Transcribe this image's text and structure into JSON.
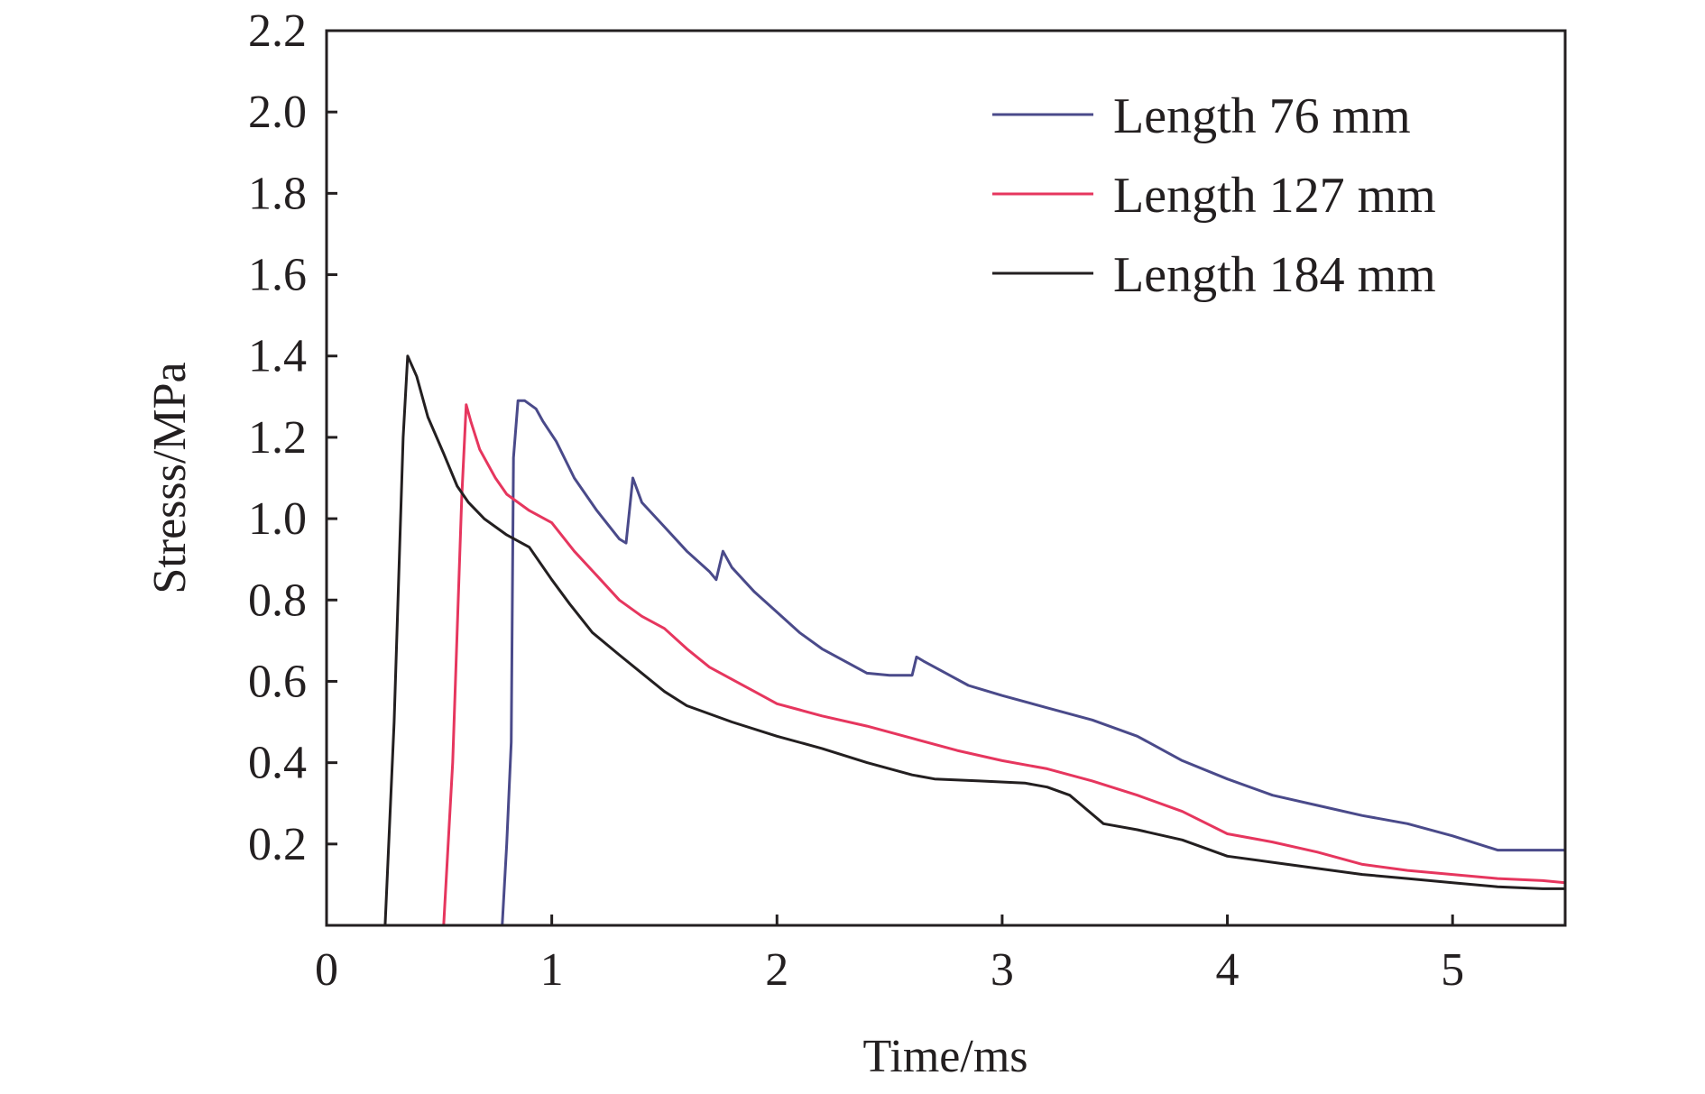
{
  "chart_data": {
    "type": "line",
    "xlabel": "Time/ms",
    "ylabel": "Stresss/MPa",
    "xlim": [
      0,
      5.5
    ],
    "ylim": [
      0,
      2.2
    ],
    "x_ticks": [
      0,
      1,
      2,
      3,
      4,
      5
    ],
    "x_tick_labels": [
      "0",
      "1",
      "2",
      "3",
      "4",
      "5"
    ],
    "y_ticks": [
      0.2,
      0.4,
      0.6,
      0.8,
      1.0,
      1.2,
      1.4,
      1.6,
      1.8,
      2.0,
      2.2
    ],
    "y_tick_labels": [
      "0.2",
      "0.4",
      "0.6",
      "0.8",
      "1.0",
      "1.2",
      "1.4",
      "1.6",
      "1.8",
      "2.0",
      "2.2"
    ],
    "grid": false,
    "legend_position": "top-right",
    "series": [
      {
        "name": "Length 76 mm",
        "color": "#4a4a8a",
        "x": [
          0.78,
          0.8,
          0.82,
          0.83,
          0.85,
          0.88,
          0.93,
          0.96,
          1.02,
          1.1,
          1.2,
          1.3,
          1.33,
          1.36,
          1.4,
          1.5,
          1.6,
          1.7,
          1.73,
          1.76,
          1.8,
          1.9,
          2.0,
          2.1,
          2.2,
          2.3,
          2.4,
          2.5,
          2.6,
          2.62,
          2.65,
          2.75,
          2.85,
          3.0,
          3.2,
          3.4,
          3.6,
          3.8,
          4.0,
          4.2,
          4.4,
          4.6,
          4.8,
          5.0,
          5.2,
          5.4,
          5.5
        ],
        "y": [
          0.0,
          0.2,
          0.45,
          1.15,
          1.29,
          1.29,
          1.27,
          1.24,
          1.19,
          1.1,
          1.02,
          0.95,
          0.94,
          1.1,
          1.04,
          0.98,
          0.92,
          0.87,
          0.85,
          0.92,
          0.88,
          0.82,
          0.77,
          0.72,
          0.68,
          0.65,
          0.62,
          0.615,
          0.615,
          0.66,
          0.65,
          0.62,
          0.59,
          0.565,
          0.535,
          0.505,
          0.465,
          0.405,
          0.36,
          0.32,
          0.295,
          0.27,
          0.25,
          0.22,
          0.185,
          0.185,
          0.185
        ]
      },
      {
        "name": "Length 127 mm",
        "color": "#e6365e",
        "x": [
          0.52,
          0.56,
          0.6,
          0.62,
          0.64,
          0.68,
          0.75,
          0.8,
          0.9,
          1.0,
          1.1,
          1.2,
          1.3,
          1.4,
          1.5,
          1.6,
          1.7,
          1.8,
          1.9,
          2.0,
          2.1,
          2.2,
          2.4,
          2.6,
          2.8,
          3.0,
          3.2,
          3.4,
          3.6,
          3.8,
          4.0,
          4.2,
          4.4,
          4.6,
          4.8,
          5.0,
          5.2,
          5.4,
          5.5
        ],
        "y": [
          0.0,
          0.4,
          1.05,
          1.28,
          1.24,
          1.17,
          1.1,
          1.06,
          1.02,
          0.99,
          0.92,
          0.86,
          0.8,
          0.76,
          0.73,
          0.68,
          0.635,
          0.605,
          0.575,
          0.545,
          0.53,
          0.515,
          0.49,
          0.46,
          0.43,
          0.405,
          0.385,
          0.355,
          0.32,
          0.28,
          0.225,
          0.205,
          0.18,
          0.15,
          0.135,
          0.125,
          0.115,
          0.11,
          0.105
        ]
      },
      {
        "name": "Length 184 mm",
        "color": "#231f20",
        "x": [
          0.26,
          0.3,
          0.34,
          0.36,
          0.4,
          0.45,
          0.52,
          0.58,
          0.63,
          0.7,
          0.8,
          0.9,
          1.0,
          1.08,
          1.18,
          1.3,
          1.4,
          1.5,
          1.6,
          1.8,
          2.0,
          2.2,
          2.4,
          2.6,
          2.7,
          2.9,
          3.1,
          3.2,
          3.3,
          3.45,
          3.6,
          3.8,
          4.0,
          4.2,
          4.4,
          4.6,
          4.8,
          5.0,
          5.2,
          5.4,
          5.5
        ],
        "y": [
          0.0,
          0.5,
          1.2,
          1.4,
          1.35,
          1.25,
          1.16,
          1.08,
          1.04,
          1.0,
          0.96,
          0.93,
          0.85,
          0.79,
          0.72,
          0.665,
          0.62,
          0.575,
          0.54,
          0.5,
          0.465,
          0.435,
          0.4,
          0.37,
          0.36,
          0.355,
          0.35,
          0.34,
          0.32,
          0.25,
          0.235,
          0.21,
          0.17,
          0.155,
          0.14,
          0.125,
          0.115,
          0.105,
          0.095,
          0.09,
          0.09
        ]
      }
    ]
  }
}
